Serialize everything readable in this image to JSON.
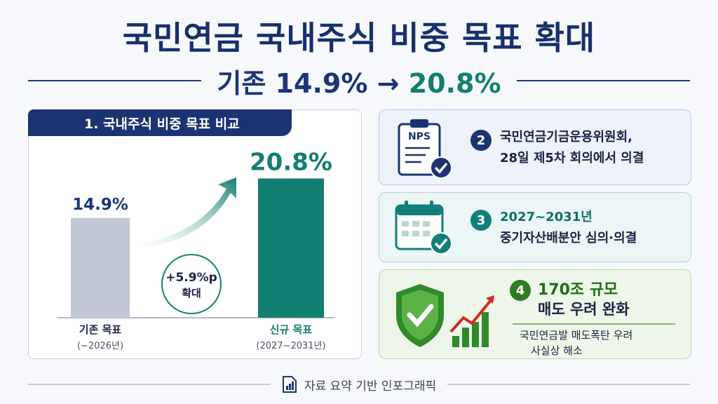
{
  "title": "국민연금 국내주식 비중 목표 확대",
  "subtitle": {
    "prefix": "기존 14.9% →",
    "new_value": "20.8%"
  },
  "section1": {
    "header": "1. 국내주식 비중 목표 비교",
    "change_label": "+5.9%p",
    "change_sub": "확대"
  },
  "chart_data": {
    "type": "bar",
    "categories": [
      "기존 목표",
      "신규 목표"
    ],
    "category_sub": [
      "(~2026년)",
      "(2027~2031년)"
    ],
    "values": [
      14.9,
      20.8
    ],
    "value_labels": [
      "14.9%",
      "20.8%"
    ],
    "colors": [
      "#c3c8d6",
      "#117f71"
    ],
    "ylim": [
      0,
      22
    ]
  },
  "cards": [
    {
      "number": "2",
      "icon": "nps-clipboard-check-icon",
      "icon_text": "NPS",
      "line1": "국민연금기금운용위원회,",
      "line2": "28일 제5차 회의에서 의결",
      "color": "#1b3470"
    },
    {
      "number": "3",
      "icon": "calendar-check-icon",
      "line1": "2027~2031년",
      "line2": "중기자산배분안 심의·의결",
      "color": "#11807a"
    },
    {
      "number": "4",
      "icon": "shield-check-growth-icon",
      "line1": "170조 규모",
      "line2": "매도 우려 완화",
      "note1": "국민연금발 매도폭탄 우려",
      "note2": "사실상 해소",
      "color": "#2d7d22"
    }
  ],
  "footer": "자료 요약 기반 인포그래픽"
}
